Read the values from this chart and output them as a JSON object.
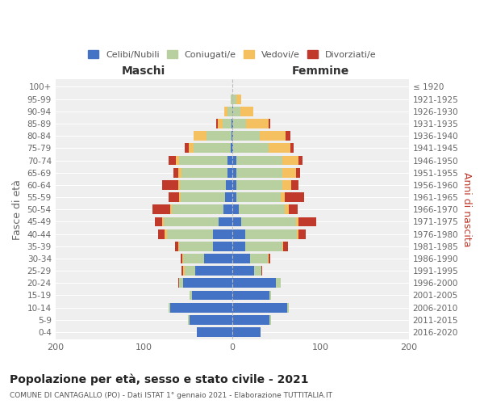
{
  "age_groups": [
    "0-4",
    "5-9",
    "10-14",
    "15-19",
    "20-24",
    "25-29",
    "30-34",
    "35-39",
    "40-44",
    "45-49",
    "50-54",
    "55-59",
    "60-64",
    "65-69",
    "70-74",
    "75-79",
    "80-84",
    "85-89",
    "90-94",
    "95-99",
    "100+"
  ],
  "birth_years": [
    "2016-2020",
    "2011-2015",
    "2006-2010",
    "2001-2005",
    "1996-2000",
    "1991-1995",
    "1986-1990",
    "1981-1985",
    "1976-1980",
    "1971-1975",
    "1966-1970",
    "1961-1965",
    "1956-1960",
    "1951-1955",
    "1946-1950",
    "1941-1945",
    "1936-1940",
    "1931-1935",
    "1926-1930",
    "1921-1925",
    "≤ 1920"
  ],
  "male": {
    "celibi": [
      40,
      48,
      70,
      45,
      55,
      42,
      32,
      22,
      22,
      15,
      10,
      8,
      7,
      5,
      5,
      2,
      1,
      1,
      0,
      0,
      0
    ],
    "coniugati": [
      0,
      2,
      2,
      3,
      5,
      12,
      23,
      38,
      52,
      62,
      58,
      50,
      52,
      52,
      55,
      42,
      28,
      10,
      5,
      2,
      0
    ],
    "vedovi": [
      0,
      0,
      0,
      0,
      0,
      1,
      1,
      1,
      2,
      2,
      2,
      2,
      2,
      4,
      4,
      5,
      15,
      5,
      4,
      0,
      0
    ],
    "divorziati": [
      0,
      0,
      0,
      0,
      1,
      2,
      2,
      4,
      8,
      8,
      20,
      12,
      18,
      5,
      8,
      5,
      0,
      2,
      0,
      0,
      0
    ]
  },
  "female": {
    "nubili": [
      32,
      42,
      62,
      42,
      50,
      25,
      20,
      15,
      15,
      10,
      8,
      5,
      5,
      5,
      5,
      1,
      1,
      1,
      1,
      0,
      0
    ],
    "coniugate": [
      0,
      2,
      2,
      2,
      5,
      8,
      20,
      42,
      58,
      62,
      52,
      50,
      52,
      52,
      52,
      40,
      30,
      15,
      8,
      5,
      0
    ],
    "vedove": [
      0,
      0,
      0,
      0,
      0,
      0,
      1,
      1,
      2,
      3,
      4,
      5,
      10,
      15,
      18,
      25,
      30,
      25,
      15,
      5,
      0
    ],
    "divorziate": [
      0,
      0,
      0,
      0,
      0,
      1,
      2,
      5,
      8,
      20,
      10,
      22,
      8,
      5,
      5,
      4,
      5,
      2,
      0,
      0,
      0
    ]
  },
  "colors": {
    "celibi": "#4472c4",
    "coniugati": "#b8cfa0",
    "vedovi": "#f4c060",
    "divorziati": "#c0392b"
  },
  "title": "Popolazione per età, sesso e stato civile - 2021",
  "subtitle": "COMUNE DI CANTAGALLO (PO) - Dati ISTAT 1° gennaio 2021 - Elaborazione TUTTITALIA.IT",
  "ylabel_left": "Fasce di età",
  "ylabel_right": "Anni di nascita",
  "label_maschi": "Maschi",
  "label_femmine": "Femmine",
  "legend_labels": [
    "Celibi/Nubili",
    "Coniugati/e",
    "Vedovi/e",
    "Divorziati/e"
  ],
  "xlim": 200,
  "bg_color": "#ffffff",
  "plot_bg": "#efefef"
}
